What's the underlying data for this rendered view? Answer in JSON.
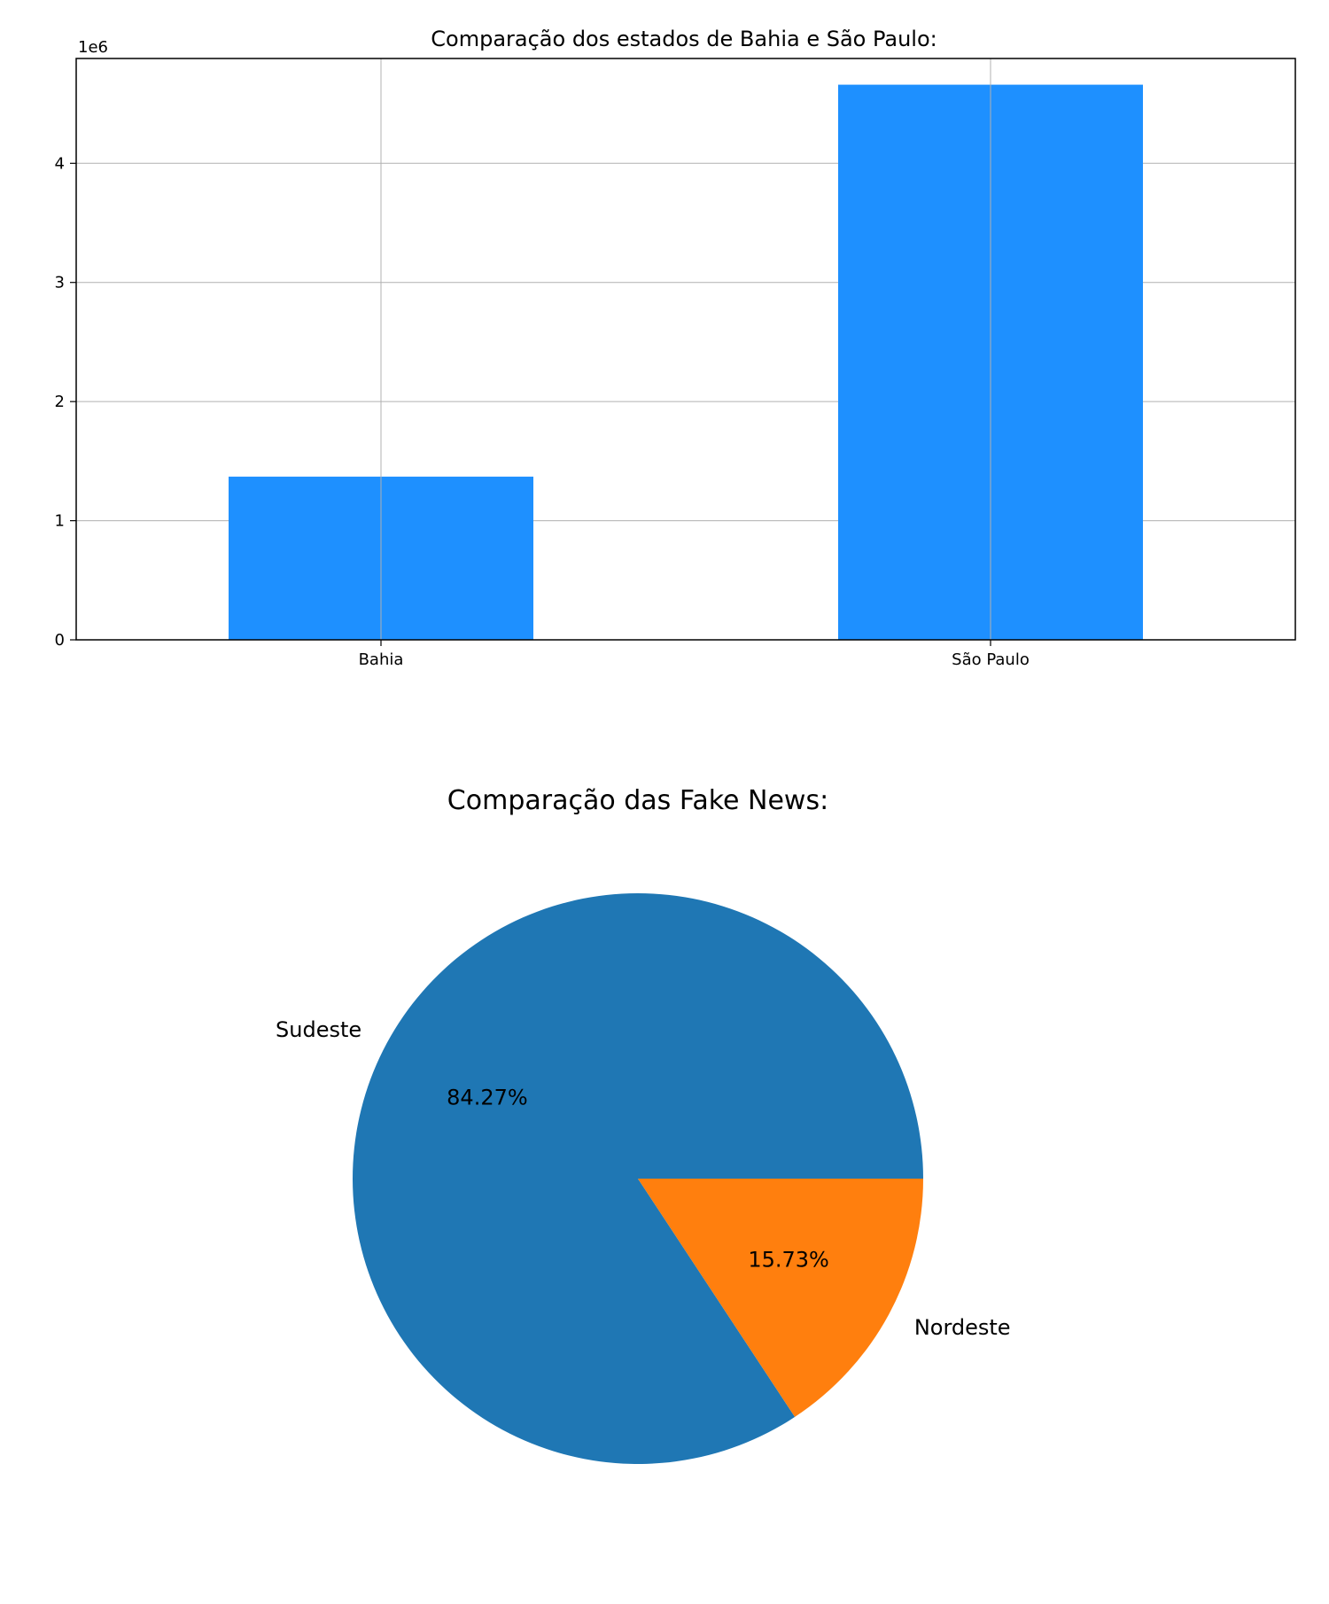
{
  "chart_data": [
    {
      "type": "bar",
      "title": "Comparação dos estados de Bahia e São Paulo:",
      "categories": [
        "Bahia",
        "São Paulo"
      ],
      "values": [
        1370000,
        4660000
      ],
      "offset_label": "1e6",
      "yticks": [
        0,
        1000000,
        2000000,
        3000000,
        4000000
      ],
      "ytick_labels": [
        "0",
        "1",
        "2",
        "3",
        "4"
      ],
      "ylim": [
        0,
        4880000
      ],
      "xlabel": "",
      "ylabel": "",
      "grid": true,
      "legend": "none",
      "bar_color": "#1e90ff"
    },
    {
      "type": "pie",
      "title": "Comparação das Fake News:",
      "slices": [
        {
          "label": "Sudeste",
          "value": 84.27,
          "pct_label": "84.27%",
          "color": "#1f77b4"
        },
        {
          "label": "Nordeste",
          "value": 15.73,
          "pct_label": "15.73%",
          "color": "#ff7f0e"
        }
      ],
      "start_angle_deg": 0,
      "direction": "counterclockwise",
      "legend": "none"
    }
  ]
}
